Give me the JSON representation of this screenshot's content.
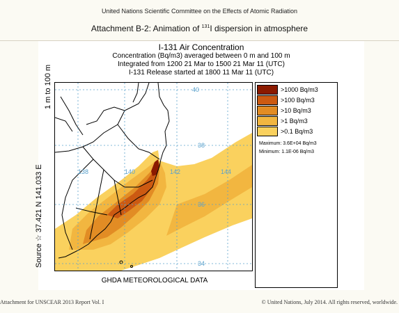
{
  "header": {
    "org": "United Nations Scientific Committee on the Effects of Atomic Radiation",
    "title_prefix": "Attachment B-2: Animation of ",
    "isotope_mass": "131",
    "title_suffix": "I dispersion in atmosphere"
  },
  "plot": {
    "title": "I-131 Air Concentration",
    "subtitle_1": "Concentration  (Bq/m3) averaged between       0 m and    100 m",
    "subtitle_2": "Integrated from 1200 21 Mar to 1500 21 Mar 11 (UTC)",
    "subtitle_3": "I-131 Release started at 1800 11 Mar 11 (UTC)",
    "y_title_top": "1 m to  100 m",
    "y_title_source": "Source ☆ 37.421  N 141.033  E",
    "data_source": "GHDA METEOROLOGICAL DATA",
    "grid_labels": {
      "lat_40": "40",
      "lat_38": "38",
      "lat_36": "36",
      "lat_34": "34",
      "lon_138": "138",
      "lon_140": "140",
      "lon_142": "142",
      "lon_144": "144"
    }
  },
  "legend": {
    "items": [
      {
        "label": ">1000 Bq/m3",
        "color": "#8b1a00"
      },
      {
        "label": ">100 Bq/m3",
        "color": "#cc5a12"
      },
      {
        "label": ">10 Bq/m3",
        "color": "#e28c24"
      },
      {
        "label": ">1 Bq/m3",
        "color": "#f2b640"
      },
      {
        "label": ">0.1 Bq/m3",
        "color": "#fad15e"
      }
    ],
    "maximum": "Maximum: 3.6E+04 Bq/m3",
    "minimum": "Minimum: 1.1E-06 Bq/m3"
  },
  "footer": {
    "left": "Attachment for UNSCEAR 2013 Report Vol. I",
    "right": "© United Nations, July 2014. All rights reserved, worldwide."
  }
}
